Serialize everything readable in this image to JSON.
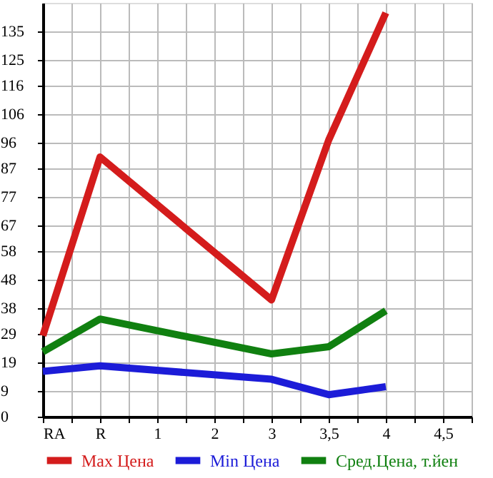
{
  "chart_data": {
    "type": "line",
    "categories": [
      "RA",
      "R",
      "1",
      "2",
      "3",
      "3,5",
      "4",
      "4,5"
    ],
    "series": [
      {
        "name": "Max Цена",
        "color": "#d41c1c",
        "values": [
          28.4,
          91,
          null,
          null,
          40.9,
          96.9,
          141.5,
          null
        ]
      },
      {
        "name": "Min Цена",
        "color": "#1c1cd8",
        "values": [
          15.9,
          17.8,
          null,
          null,
          13.1,
          7.7,
          10.5,
          null
        ]
      },
      {
        "name": "Сред.Цена, т.йен",
        "color": "#108010",
        "values": [
          22.7,
          34.2,
          null,
          null,
          22,
          24.5,
          37.1,
          null
        ]
      }
    ],
    "ylim": [
      0,
      145
    ],
    "yticks": [
      0,
      9,
      19,
      29,
      38,
      48,
      58,
      67,
      77,
      87,
      96,
      106,
      116,
      125,
      135
    ],
    "grid": true,
    "legend": "bottom",
    "marker": "none",
    "line_style": "solid"
  }
}
